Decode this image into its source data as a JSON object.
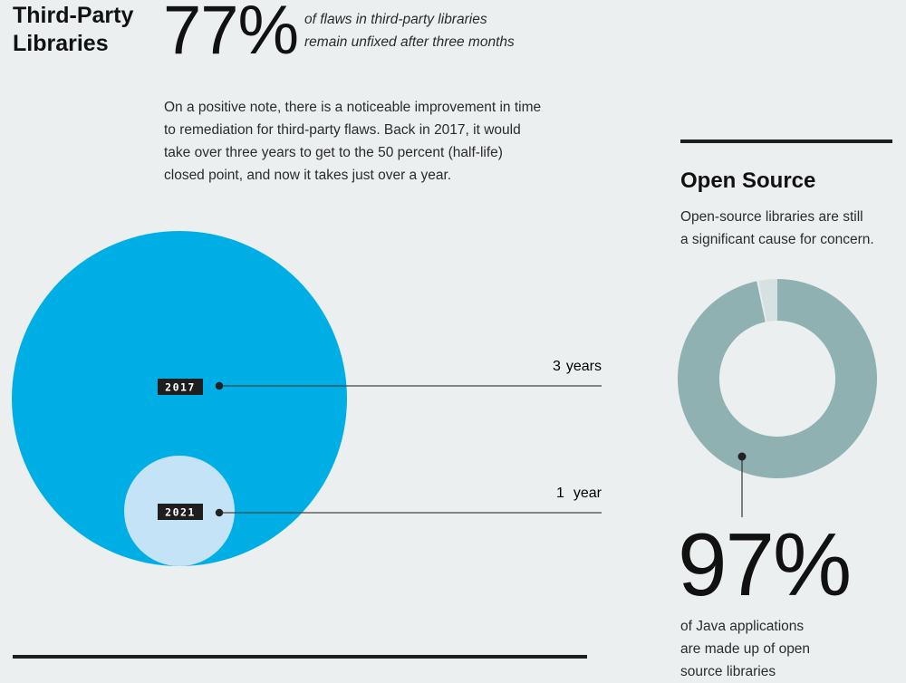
{
  "third_party": {
    "title": "Third-Party\nLibraries",
    "stat": "77%",
    "stat_note": "of flaws in third-party libraries\nremain unfixed after three months",
    "paragraph": "On a positive note, there is a noticeable improvement in time\nto remediation for third-party flaws. Back in 2017, it would\ntake over three years to get to the 50 percent (half-life)\nclosed point, and now it takes just over a year."
  },
  "half_life": {
    "items": [
      {
        "year": "2017",
        "duration_num": "3",
        "duration_unit": "years",
        "years_value": 3
      },
      {
        "year": "2021",
        "duration_num": "1",
        "duration_unit": "year",
        "years_value": 1
      }
    ]
  },
  "open_source": {
    "title": "Open Source",
    "description": "Open-source libraries are still\na significant cause for concern.",
    "stat": "97%",
    "stat_value": 97,
    "stat_note": "of Java applications\nare made up of open\nsource libraries"
  },
  "colors": {
    "circle_2017": "#00aee6",
    "circle_2021": "#c5e3f6",
    "donut_main": "#8fb1b1",
    "donut_rest": "#d8e1e2",
    "label_bg": "#1e1e1e",
    "background": "#eceff0"
  }
}
